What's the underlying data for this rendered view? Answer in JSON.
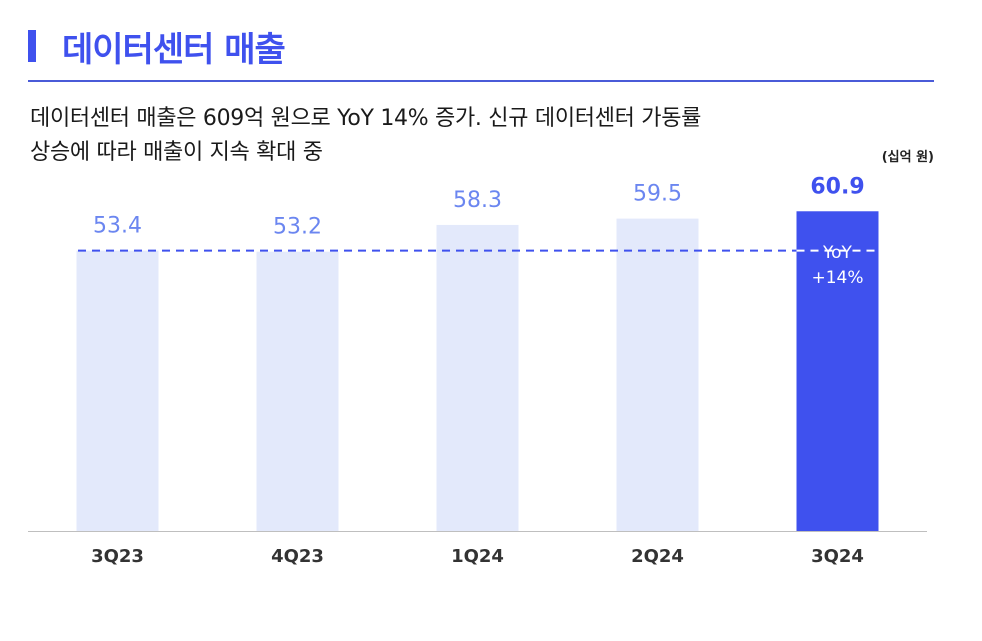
{
  "header": {
    "title": "데이터센터 매출",
    "subtitle_line1": "데이터센터 매출은 609억 원으로 YoY 14% 증가. 신규 데이터센터 가동률",
    "subtitle_line2": "상승에 따라 매출이 지속 확대 중",
    "unit": "(십억 원)"
  },
  "colors": {
    "accent": "#3f51ee",
    "bar_light": "#e3e9fb",
    "bar_highlight": "#3f51ee",
    "label_light": "#6b86f0",
    "label_highlight": "#3f51ee",
    "rule": "#4a5bd8"
  },
  "chart_data": {
    "type": "bar",
    "categories": [
      "3Q23",
      "4Q23",
      "1Q24",
      "2Q24",
      "3Q24"
    ],
    "values": [
      53.4,
      53.2,
      58.3,
      59.5,
      60.9
    ],
    "highlight_index": 4,
    "reference_line": 53.4,
    "annotation": {
      "line1": "YoY",
      "line2": "+14%"
    },
    "ylim": [
      0,
      80
    ],
    "grid": false
  }
}
